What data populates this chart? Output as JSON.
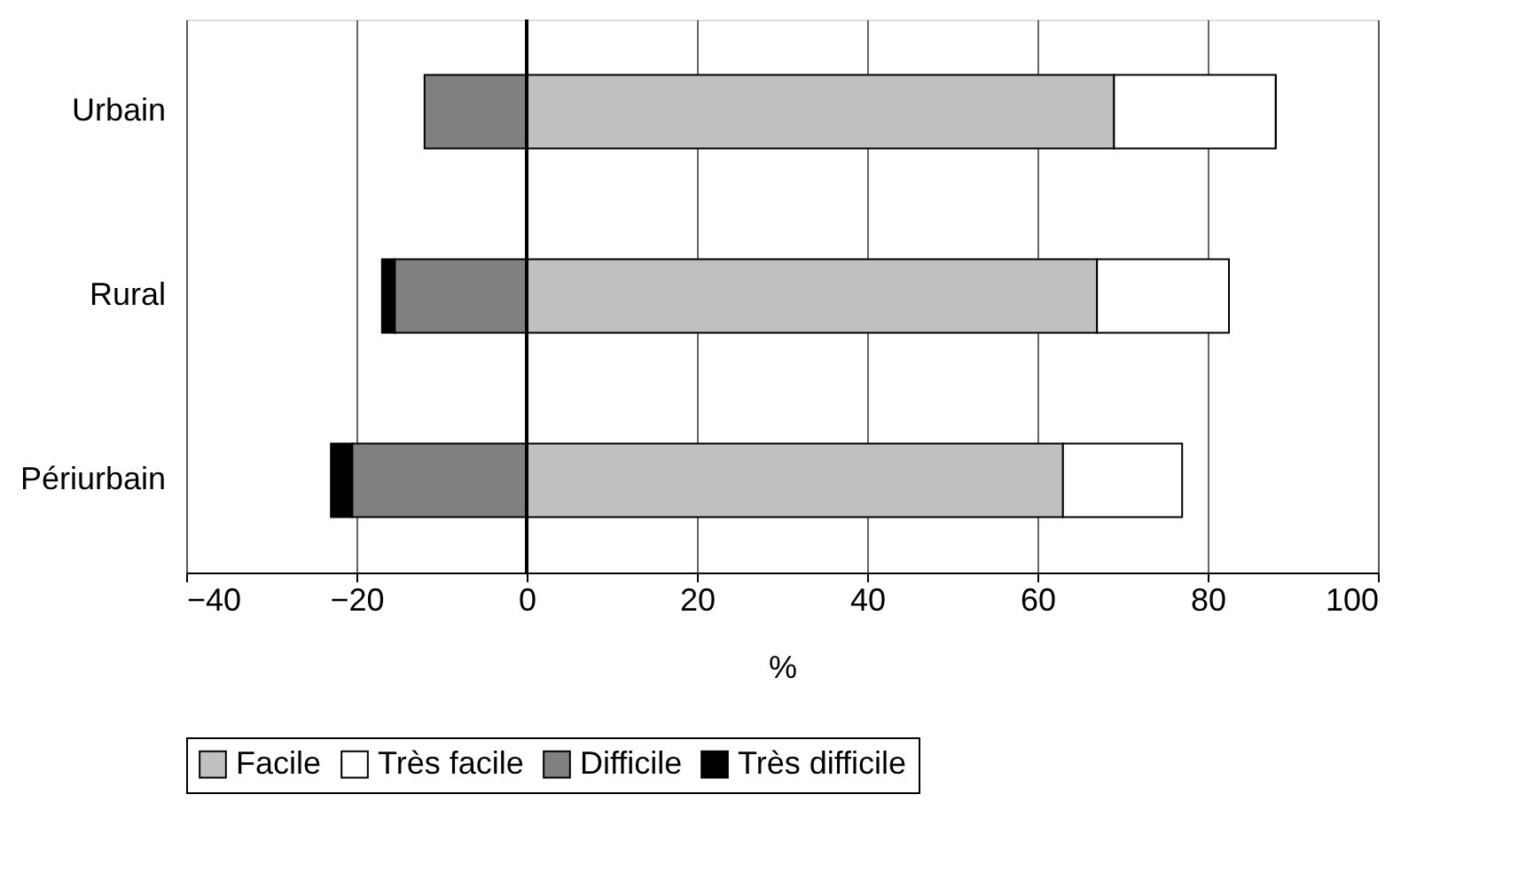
{
  "chart_data": {
    "type": "bar",
    "orientation": "horizontal",
    "stacked": true,
    "xlabel": "%",
    "categories": [
      "Urbain",
      "Rural",
      "Périurbain"
    ],
    "series": [
      {
        "name": "Facile",
        "color": "#c0c0c0",
        "values": [
          69,
          67,
          63
        ]
      },
      {
        "name": "Très facile",
        "color": "#ffffff",
        "values": [
          19,
          15.5,
          14
        ]
      },
      {
        "name": "Difficile",
        "color": "#808080",
        "values": [
          -12,
          -15.5,
          -20.5
        ]
      },
      {
        "name": "Très difficile",
        "color": "#000000",
        "values": [
          0,
          -1.5,
          -2.5
        ]
      }
    ],
    "xlim": [
      -40,
      100
    ],
    "xticks": [
      -40,
      -20,
      0,
      20,
      40,
      60,
      80,
      100
    ],
    "grid": "x",
    "legend": "bottom"
  }
}
